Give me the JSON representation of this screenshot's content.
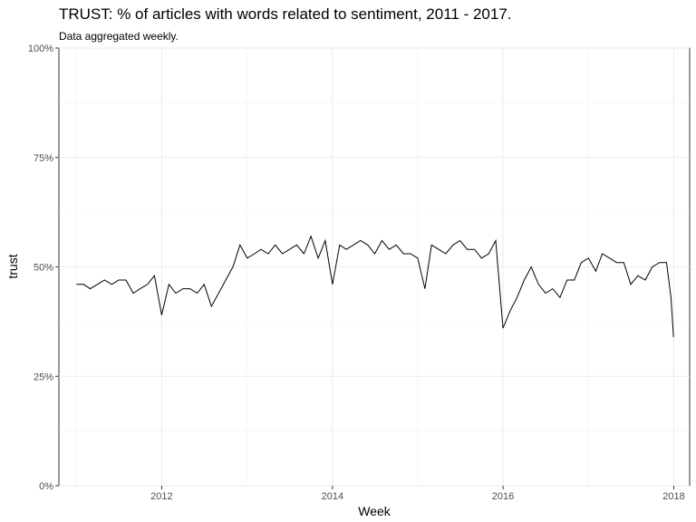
{
  "title": "TRUST: % of articles with words related to sentiment, 2011 - 2017.",
  "subtitle": "Data aggregated weekly.",
  "chart_data": {
    "type": "line",
    "title": "TRUST: % of articles with words related to sentiment, 2011 - 2017.",
    "subtitle": "Data aggregated weekly.",
    "xlabel": "Week",
    "ylabel": "trust",
    "xlim": [
      "2010-10-18",
      "2018-03-10"
    ],
    "ylim": [
      0,
      1
    ],
    "x_ticks": [
      "2012-01-01",
      "2014-01-01",
      "2016-01-01",
      "2018-01-01"
    ],
    "x_tick_labels": [
      "2012",
      "2014",
      "2016",
      "2018"
    ],
    "y_ticks": [
      0,
      0.25,
      0.5,
      0.75,
      1.0
    ],
    "y_tick_labels": [
      "0%",
      "25%",
      "50%",
      "75%",
      "100%"
    ],
    "grid": true,
    "line_color": "#000000",
    "series": [
      {
        "x": [
          "2011-01-01",
          "2011-02-01",
          "2011-03-01",
          "2011-04-01",
          "2011-05-01",
          "2011-06-01",
          "2011-07-01",
          "2011-08-01",
          "2011-09-01",
          "2011-10-01",
          "2011-11-01",
          "2011-12-01",
          "2012-01-01",
          "2012-02-01",
          "2012-03-01",
          "2012-04-01",
          "2012-05-01",
          "2012-06-01",
          "2012-07-01",
          "2012-08-01",
          "2012-09-01",
          "2012-10-01",
          "2012-11-01",
          "2012-12-01",
          "2013-01-01",
          "2013-02-01",
          "2013-03-01",
          "2013-04-01",
          "2013-05-01",
          "2013-06-01",
          "2013-07-01",
          "2013-08-01",
          "2013-09-01",
          "2013-10-01",
          "2013-11-01",
          "2013-12-01",
          "2014-01-01",
          "2014-02-01",
          "2014-03-01",
          "2014-04-01",
          "2014-05-01",
          "2014-06-01",
          "2014-07-01",
          "2014-08-01",
          "2014-09-01",
          "2014-10-01",
          "2014-11-01",
          "2014-12-01",
          "2015-01-01",
          "2015-02-01",
          "2015-03-01",
          "2015-04-01",
          "2015-05-01",
          "2015-06-01",
          "2015-07-01",
          "2015-08-01",
          "2015-09-01",
          "2015-10-01",
          "2015-11-01",
          "2015-12-01",
          "2016-01-01",
          "2016-02-01",
          "2016-03-01",
          "2016-04-01",
          "2016-05-01",
          "2016-06-01",
          "2016-07-01",
          "2016-08-01",
          "2016-09-01",
          "2016-10-01",
          "2016-11-01",
          "2016-12-01",
          "2017-01-01",
          "2017-02-01",
          "2017-03-01",
          "2017-04-01",
          "2017-05-01",
          "2017-06-01",
          "2017-07-01",
          "2017-08-01",
          "2017-09-01",
          "2017-10-01",
          "2017-11-01",
          "2017-12-01",
          "2017-12-20",
          "2017-12-31"
        ],
        "y": [
          0.46,
          0.46,
          0.45,
          0.46,
          0.47,
          0.46,
          0.47,
          0.47,
          0.44,
          0.45,
          0.46,
          0.48,
          0.39,
          0.46,
          0.44,
          0.45,
          0.45,
          0.44,
          0.46,
          0.41,
          0.44,
          0.47,
          0.5,
          0.55,
          0.52,
          0.53,
          0.54,
          0.53,
          0.55,
          0.53,
          0.54,
          0.55,
          0.53,
          0.57,
          0.52,
          0.56,
          0.46,
          0.55,
          0.54,
          0.55,
          0.56,
          0.55,
          0.53,
          0.56,
          0.54,
          0.55,
          0.53,
          0.53,
          0.52,
          0.45,
          0.55,
          0.54,
          0.53,
          0.55,
          0.56,
          0.54,
          0.54,
          0.52,
          0.53,
          0.56,
          0.36,
          0.4,
          0.43,
          0.47,
          0.5,
          0.46,
          0.44,
          0.45,
          0.43,
          0.47,
          0.47,
          0.51,
          0.52,
          0.49,
          0.53,
          0.52,
          0.51,
          0.51,
          0.46,
          0.48,
          0.47,
          0.5,
          0.51,
          0.51,
          0.43,
          0.34
        ]
      }
    ]
  }
}
